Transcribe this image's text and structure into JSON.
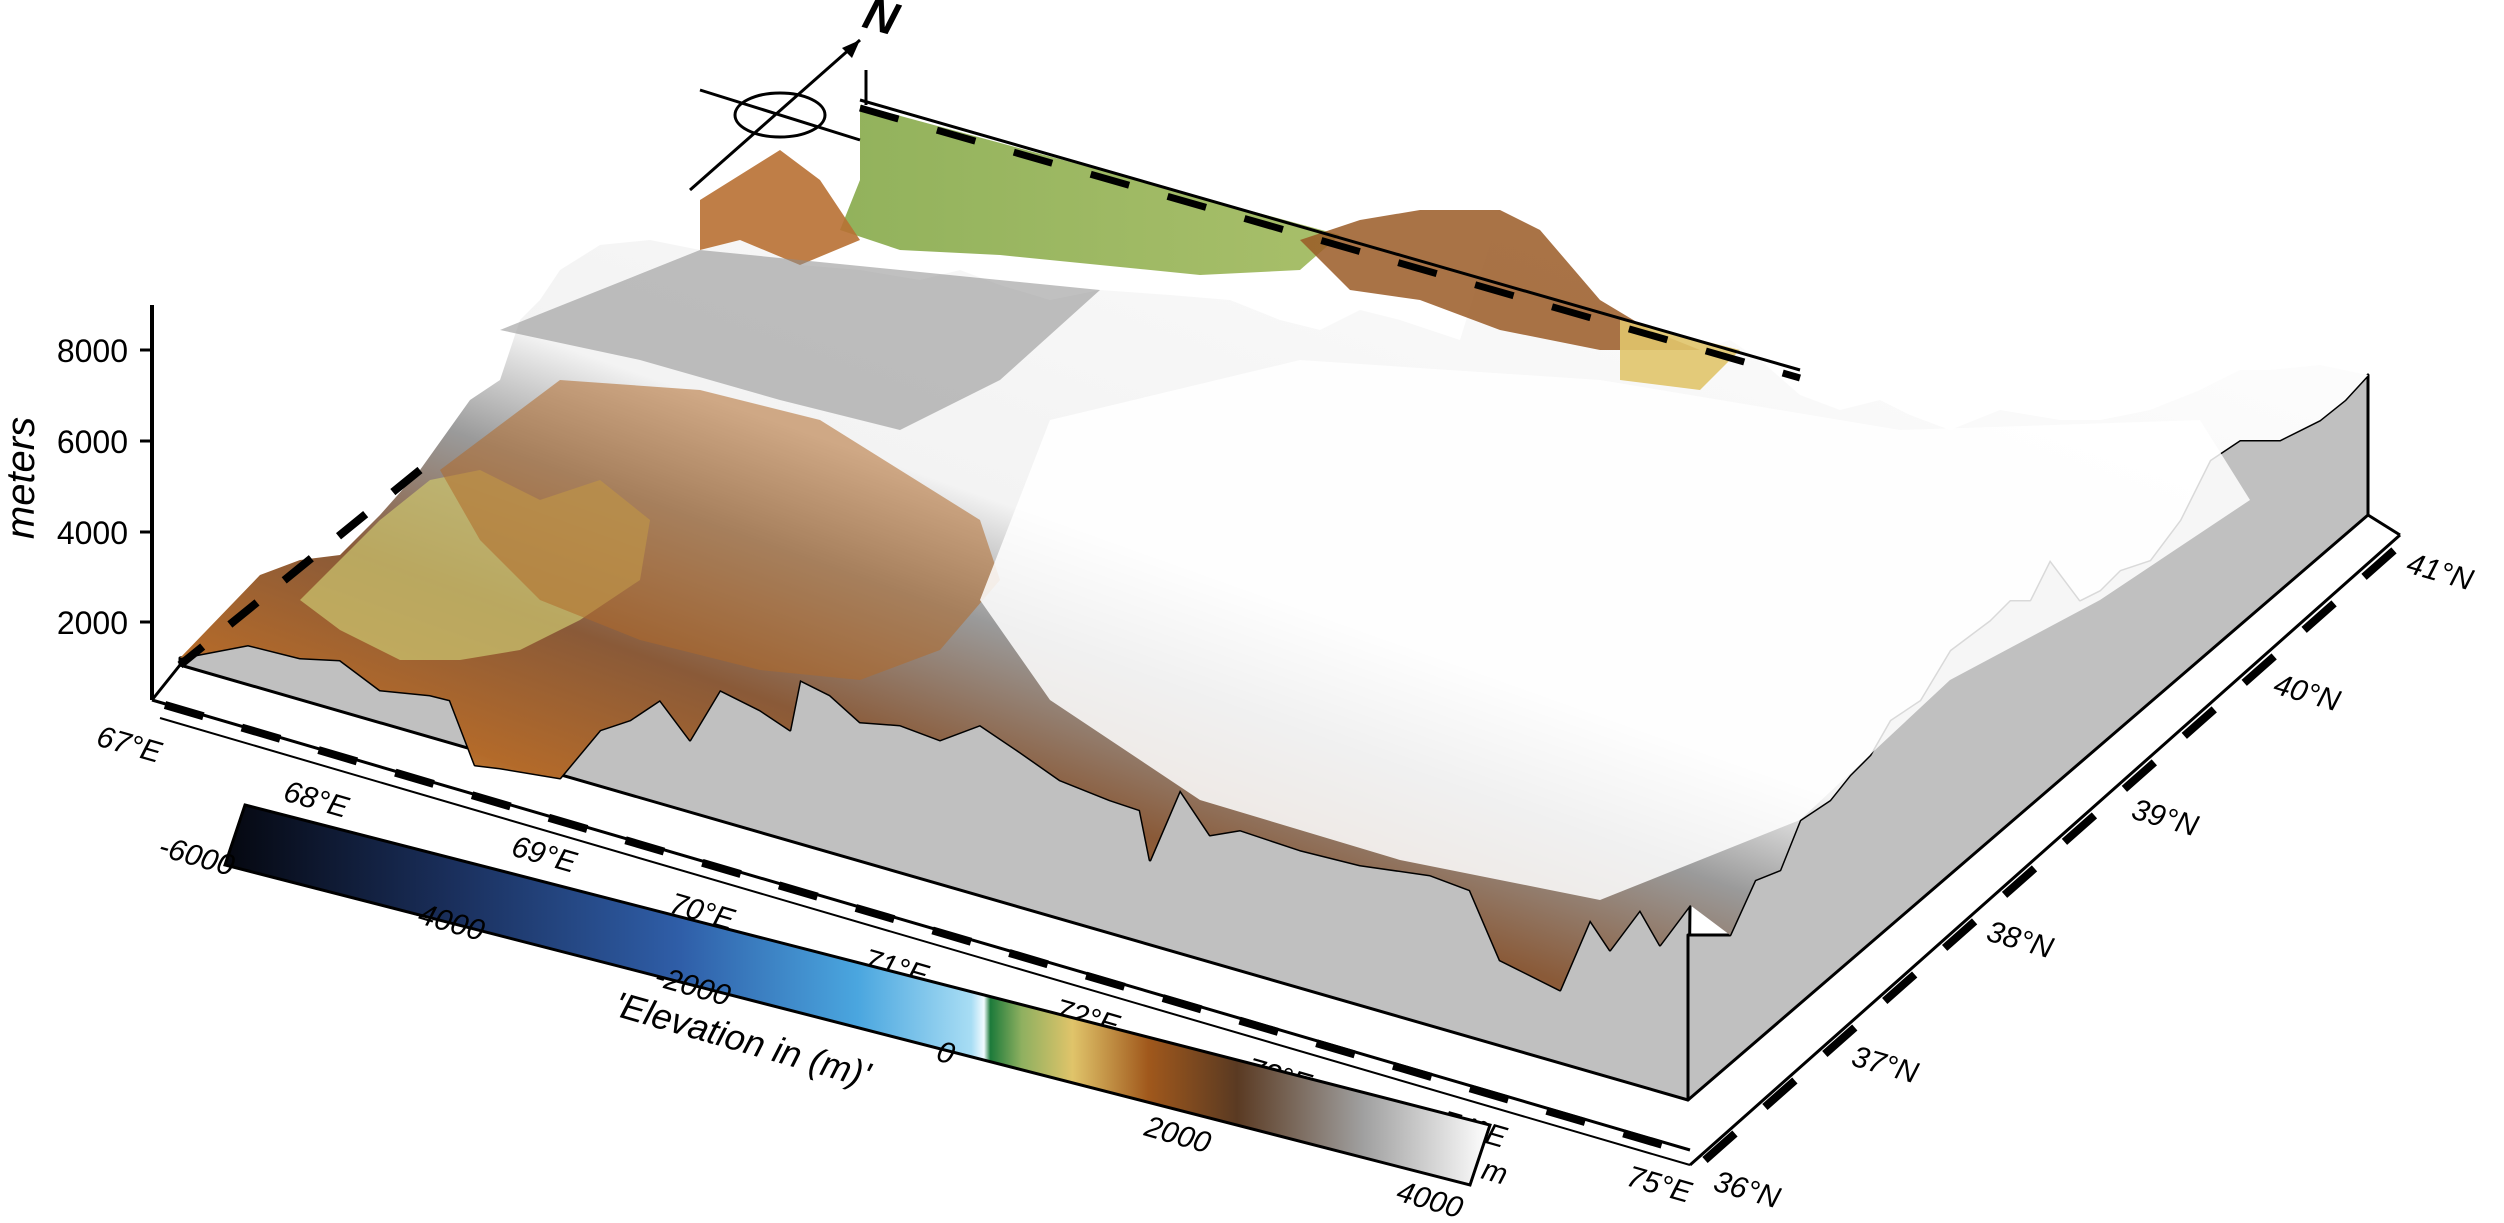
{
  "north_arrow": {
    "label": "N"
  },
  "z_axis": {
    "title": "meters",
    "ticks": [
      "2000",
      "4000",
      "6000",
      "8000"
    ]
  },
  "longitude_labels": [
    "67°E",
    "68°E",
    "69°E",
    "70°E",
    "71°E",
    "72°E",
    "73°E",
    "74°E",
    "75°E"
  ],
  "latitude_labels": [
    "36°N",
    "37°N",
    "38°N",
    "39°N",
    "40°N",
    "41°N"
  ],
  "colorbar": {
    "title": "'Elevation in (m)'",
    "unit": "m",
    "tick_labels": [
      "-6000",
      "-4000",
      "-2000",
      "0",
      "2000",
      "4000"
    ],
    "range": [
      -6000,
      4000
    ]
  },
  "colors": {
    "lowland": "#8fb060",
    "highland": "#a0581c",
    "snow": "#ffffff",
    "base_wall": "#c0c0c0",
    "ocean_deep": "#0a0f1e",
    "ocean_shallow": "#7fcff0"
  }
}
